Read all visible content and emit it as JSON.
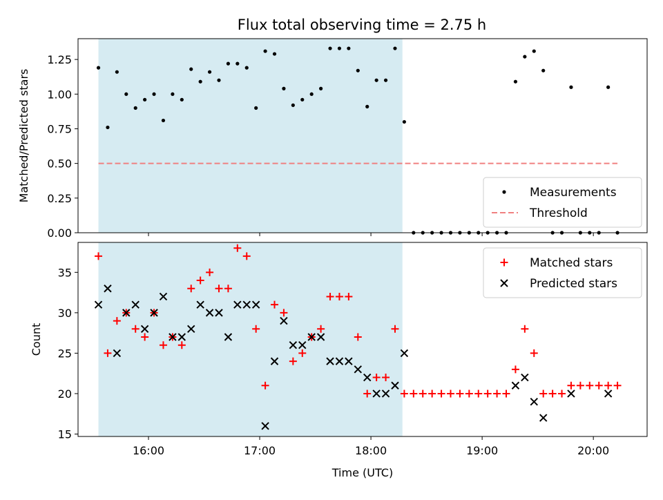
{
  "title": "Flux total observing time = 2.75 h",
  "colors": {
    "measurement": "#000000",
    "threshold": "#f08080",
    "matched": "#ff0000",
    "predicted": "#000000",
    "span": "#add8e6"
  },
  "chart_data": [
    {
      "type": "scatter",
      "ylabel": "Matched/Predicted stars",
      "ylim": [
        0,
        1.4
      ],
      "yticks": [
        0.0,
        0.25,
        0.5,
        0.75,
        1.0,
        1.25
      ],
      "ytick_labels": [
        "0.00",
        "0.25",
        "0.50",
        "0.75",
        "1.00",
        "1.25"
      ],
      "xlim": [
        "15:22",
        "20:29"
      ],
      "shaded_span": [
        "15:33",
        "18:17"
      ],
      "legend_placement": "lower-right",
      "threshold": {
        "name": "Threshold",
        "value": 0.5,
        "x_range": [
          "15:33",
          "20:13"
        ],
        "style": "dashed"
      },
      "series": [
        {
          "name": "Measurements",
          "marker": "dot",
          "points": [
            [
              "15:33",
              1.19
            ],
            [
              "15:38",
              0.76
            ],
            [
              "15:43",
              1.16
            ],
            [
              "15:48",
              1.0
            ],
            [
              "15:53",
              0.9
            ],
            [
              "15:58",
              0.96
            ],
            [
              "16:03",
              1.0
            ],
            [
              "16:08",
              0.81
            ],
            [
              "16:13",
              1.0
            ],
            [
              "16:18",
              0.96
            ],
            [
              "16:23",
              1.18
            ],
            [
              "16:28",
              1.09
            ],
            [
              "16:33",
              1.16
            ],
            [
              "16:38",
              1.1
            ],
            [
              "16:43",
              1.22
            ],
            [
              "16:48",
              1.22
            ],
            [
              "16:53",
              1.19
            ],
            [
              "16:58",
              0.9
            ],
            [
              "17:03",
              1.31
            ],
            [
              "17:08",
              1.29
            ],
            [
              "17:13",
              1.04
            ],
            [
              "17:18",
              0.92
            ],
            [
              "17:23",
              0.96
            ],
            [
              "17:28",
              1.0
            ],
            [
              "17:33",
              1.04
            ],
            [
              "17:38",
              1.33
            ],
            [
              "17:43",
              1.33
            ],
            [
              "17:48",
              1.33
            ],
            [
              "17:53",
              1.17
            ],
            [
              "17:58",
              0.91
            ],
            [
              "18:03",
              1.1
            ],
            [
              "18:08",
              1.1
            ],
            [
              "18:13",
              1.33
            ],
            [
              "18:18",
              0.8
            ],
            [
              "18:23",
              0.0
            ],
            [
              "18:28",
              0.0
            ],
            [
              "18:33",
              0.0
            ],
            [
              "18:38",
              0.0
            ],
            [
              "18:43",
              0.0
            ],
            [
              "18:48",
              0.0
            ],
            [
              "18:53",
              0.0
            ],
            [
              "18:58",
              0.0
            ],
            [
              "19:03",
              0.0
            ],
            [
              "19:08",
              0.0
            ],
            [
              "19:13",
              0.0
            ],
            [
              "19:18",
              1.09
            ],
            [
              "19:23",
              1.27
            ],
            [
              "19:28",
              1.31
            ],
            [
              "19:33",
              1.17
            ],
            [
              "19:38",
              0.0
            ],
            [
              "19:43",
              0.0
            ],
            [
              "19:48",
              1.05
            ],
            [
              "19:53",
              0.0
            ],
            [
              "19:58",
              0.0
            ],
            [
              "20:03",
              0.0
            ],
            [
              "20:08",
              1.05
            ],
            [
              "20:13",
              0.0
            ]
          ]
        }
      ]
    },
    {
      "type": "scatter",
      "xlabel": "Time (UTC)",
      "ylabel": "Count",
      "ylim": [
        14.7,
        38.7
      ],
      "yticks": [
        15,
        20,
        25,
        30,
        35
      ],
      "ytick_labels": [
        "15",
        "20",
        "25",
        "30",
        "35"
      ],
      "xlim": [
        "15:22",
        "20:29"
      ],
      "xticks": [
        "16:00",
        "17:00",
        "18:00",
        "19:00",
        "20:00"
      ],
      "shaded_span": [
        "15:33",
        "18:17"
      ],
      "legend_placement": "upper-right",
      "series": [
        {
          "name": "Matched stars",
          "marker": "plus",
          "points": [
            [
              "15:33",
              37
            ],
            [
              "15:38",
              25
            ],
            [
              "15:43",
              29
            ],
            [
              "15:48",
              30
            ],
            [
              "15:53",
              28
            ],
            [
              "15:58",
              27
            ],
            [
              "16:03",
              30
            ],
            [
              "16:08",
              26
            ],
            [
              "16:13",
              27
            ],
            [
              "16:18",
              26
            ],
            [
              "16:23",
              33
            ],
            [
              "16:28",
              34
            ],
            [
              "16:33",
              35
            ],
            [
              "16:38",
              33
            ],
            [
              "16:43",
              33
            ],
            [
              "16:48",
              38
            ],
            [
              "16:53",
              37
            ],
            [
              "16:58",
              28
            ],
            [
              "17:03",
              21
            ],
            [
              "17:08",
              31
            ],
            [
              "17:13",
              30
            ],
            [
              "17:18",
              24
            ],
            [
              "17:23",
              25
            ],
            [
              "17:28",
              27
            ],
            [
              "17:33",
              28
            ],
            [
              "17:38",
              32
            ],
            [
              "17:43",
              32
            ],
            [
              "17:48",
              32
            ],
            [
              "17:53",
              27
            ],
            [
              "17:58",
              20
            ],
            [
              "18:03",
              22
            ],
            [
              "18:08",
              22
            ],
            [
              "18:13",
              28
            ],
            [
              "18:18",
              20
            ],
            [
              "18:23",
              20
            ],
            [
              "18:28",
              20
            ],
            [
              "18:33",
              20
            ],
            [
              "18:38",
              20
            ],
            [
              "18:43",
              20
            ],
            [
              "18:48",
              20
            ],
            [
              "18:53",
              20
            ],
            [
              "18:58",
              20
            ],
            [
              "19:03",
              20
            ],
            [
              "19:08",
              20
            ],
            [
              "19:13",
              20
            ],
            [
              "19:18",
              23
            ],
            [
              "19:23",
              28
            ],
            [
              "19:28",
              25
            ],
            [
              "19:33",
              20
            ],
            [
              "19:38",
              20
            ],
            [
              "19:43",
              20
            ],
            [
              "19:48",
              21
            ],
            [
              "19:53",
              21
            ],
            [
              "19:58",
              21
            ],
            [
              "20:03",
              21
            ],
            [
              "20:08",
              21
            ],
            [
              "20:13",
              21
            ]
          ]
        },
        {
          "name": "Predicted stars",
          "marker": "x",
          "points": [
            [
              "15:33",
              31
            ],
            [
              "15:38",
              33
            ],
            [
              "15:43",
              25
            ],
            [
              "15:48",
              30
            ],
            [
              "15:53",
              31
            ],
            [
              "15:58",
              28
            ],
            [
              "16:03",
              30
            ],
            [
              "16:08",
              32
            ],
            [
              "16:13",
              27
            ],
            [
              "16:18",
              27
            ],
            [
              "16:23",
              28
            ],
            [
              "16:28",
              31
            ],
            [
              "16:33",
              30
            ],
            [
              "16:38",
              30
            ],
            [
              "16:43",
              27
            ],
            [
              "16:48",
              31
            ],
            [
              "16:53",
              31
            ],
            [
              "16:58",
              31
            ],
            [
              "17:03",
              16
            ],
            [
              "17:08",
              24
            ],
            [
              "17:13",
              29
            ],
            [
              "17:18",
              26
            ],
            [
              "17:23",
              26
            ],
            [
              "17:28",
              27
            ],
            [
              "17:33",
              27
            ],
            [
              "17:38",
              24
            ],
            [
              "17:43",
              24
            ],
            [
              "17:48",
              24
            ],
            [
              "17:53",
              23
            ],
            [
              "17:58",
              22
            ],
            [
              "18:03",
              20
            ],
            [
              "18:08",
              20
            ],
            [
              "18:13",
              21
            ],
            [
              "18:18",
              25
            ],
            [
              "19:18",
              21
            ],
            [
              "19:23",
              22
            ],
            [
              "19:28",
              19
            ],
            [
              "19:33",
              17
            ],
            [
              "19:48",
              20
            ],
            [
              "20:08",
              20
            ]
          ]
        }
      ]
    }
  ]
}
